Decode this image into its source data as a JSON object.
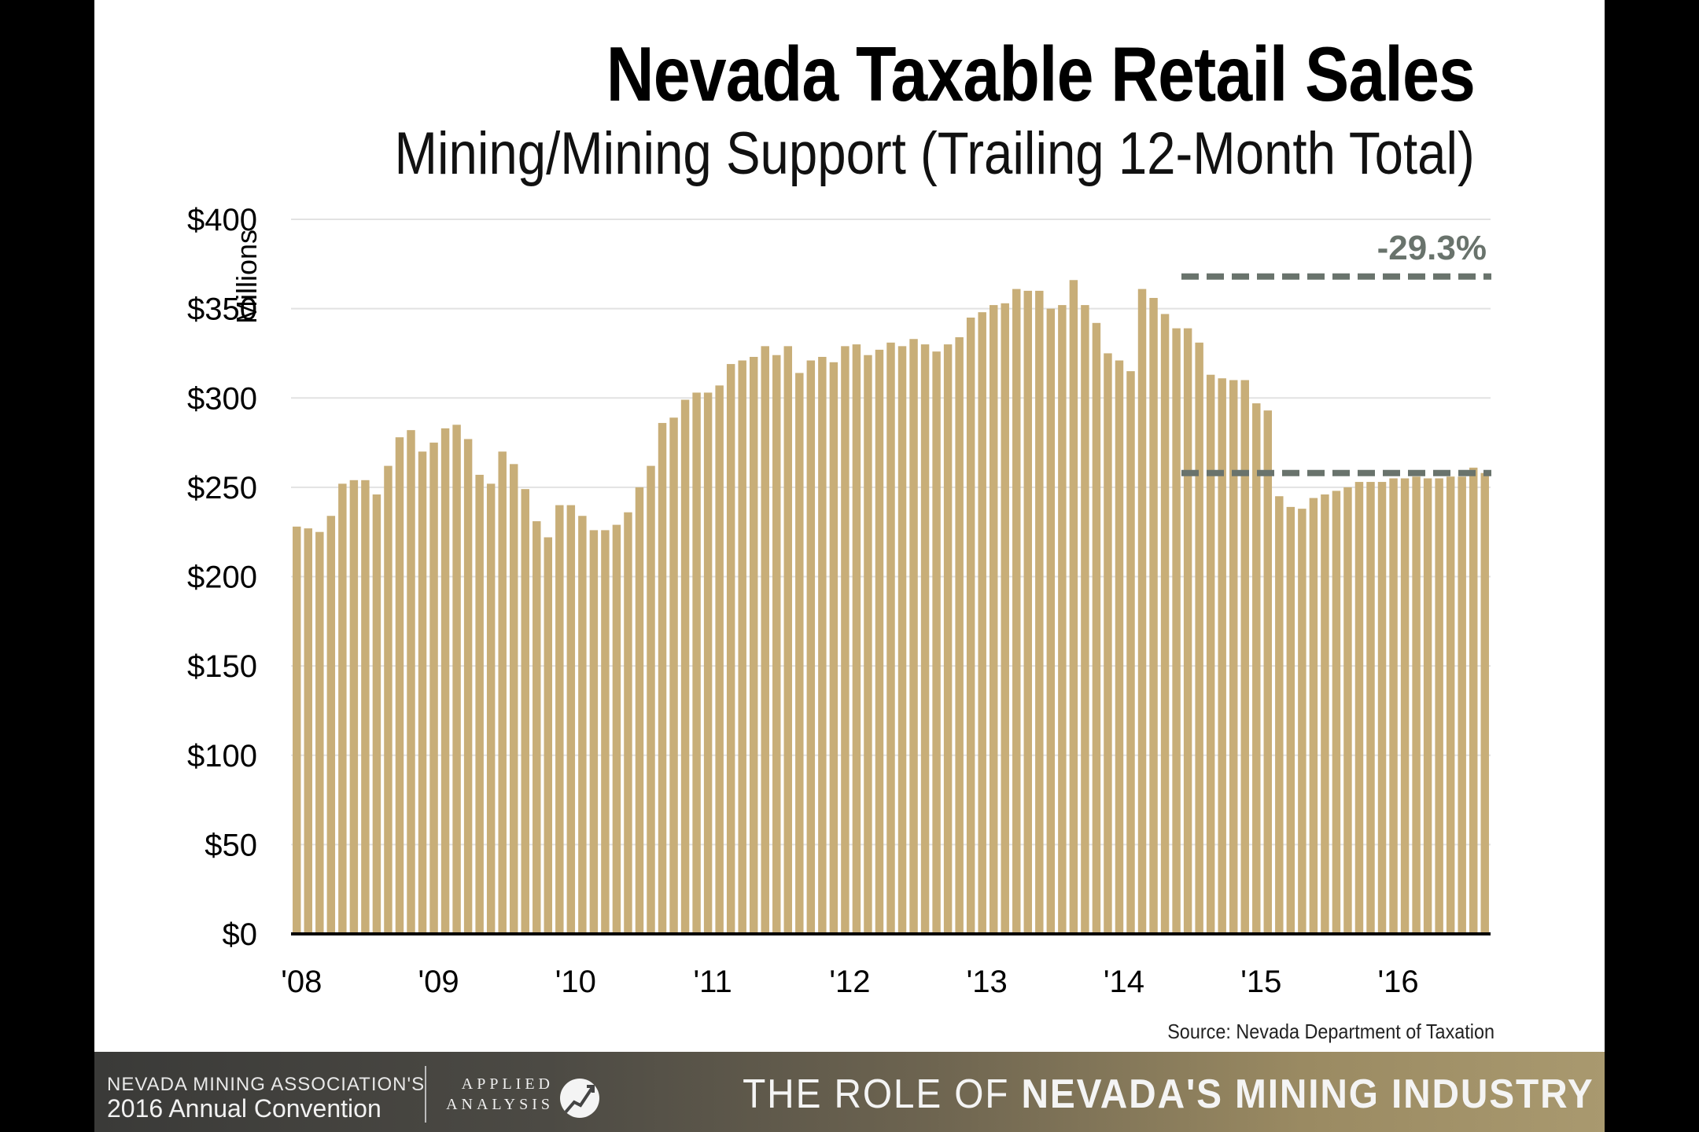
{
  "slide": {
    "title": "Nevada Taxable Retail Sales",
    "subtitle": "Mining/Mining Support (Trailing 12-Month Total)",
    "source": "Source: Nevada Department of Taxation"
  },
  "chart_data": {
    "type": "bar",
    "ylabel": "Millions",
    "ylim": [
      0,
      400
    ],
    "yticks": [
      "$0",
      "$50",
      "$100",
      "$150",
      "$200",
      "$250",
      "$300",
      "$350",
      "$400"
    ],
    "xticks": [
      "'08",
      "'09",
      "'10",
      "'11",
      "'12",
      "'13",
      "'14",
      "'15",
      "'16"
    ],
    "grid": true,
    "bar_color": "#c8ae78",
    "annotation": {
      "label": "-29.3%",
      "high": 368,
      "low": 258,
      "color": "#69736c"
    },
    "values": [
      228,
      227,
      225,
      234,
      252,
      254,
      254,
      246,
      262,
      278,
      282,
      270,
      275,
      283,
      285,
      277,
      257,
      252,
      270,
      263,
      249,
      231,
      222,
      240,
      240,
      234,
      226,
      226,
      229,
      236,
      250,
      262,
      286,
      289,
      299,
      303,
      303,
      307,
      319,
      321,
      323,
      329,
      324,
      329,
      314,
      321,
      323,
      320,
      329,
      330,
      324,
      327,
      331,
      329,
      333,
      330,
      326,
      330,
      334,
      345,
      348,
      352,
      353,
      361,
      360,
      360,
      350,
      352,
      366,
      352,
      342,
      325,
      321,
      315,
      361,
      356,
      347,
      339,
      339,
      331,
      313,
      311,
      310,
      310,
      297,
      293,
      245,
      239,
      238,
      244,
      246,
      248,
      250,
      253,
      253,
      253,
      255,
      255,
      256,
      255,
      255,
      256,
      256,
      261,
      258
    ]
  },
  "footer": {
    "line1": "NEVADA MINING ASSOCIATION'S",
    "line2": "2016 Annual Convention",
    "logo_top": "APPLIED",
    "logo_bottom": "ANALYSIS",
    "tagline_pre": "THE ROLE OF ",
    "tagline_bold": "NEVADA'S MINING INDUSTRY"
  }
}
